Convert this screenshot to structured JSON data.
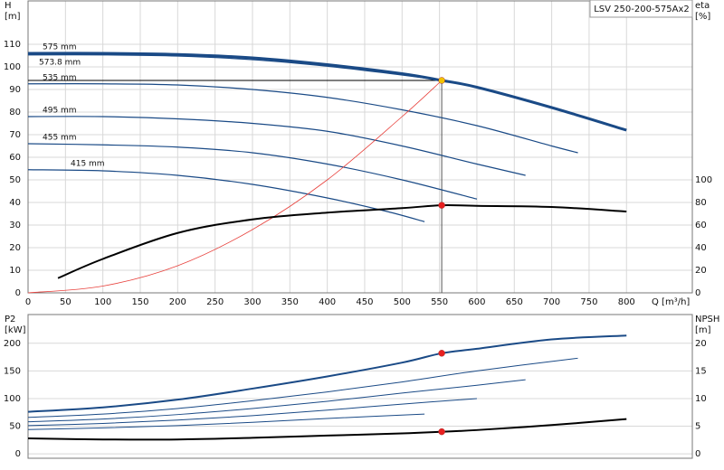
{
  "chart_data": [
    {
      "type": "line",
      "title": "LSV 250-200-575Ax2",
      "x_label": "Q [m³/h]",
      "y_label": [
        "H",
        "[m]"
      ],
      "y2_label": [
        "eta",
        "[%]"
      ],
      "xlim": [
        0,
        888
      ],
      "xticks": [
        0,
        50,
        100,
        150,
        200,
        250,
        300,
        350,
        400,
        450,
        500,
        550,
        600,
        650,
        700,
        750,
        800
      ],
      "ylim": [
        0,
        129.2
      ],
      "yticks": [
        0,
        10,
        20,
        30,
        40,
        50,
        60,
        70,
        80,
        90,
        100,
        110
      ],
      "y2lim": [
        0,
        258.4
      ],
      "y2ticks": [
        0,
        20,
        40,
        60,
        80,
        100
      ],
      "grid": true,
      "series": [
        {
          "name": "575 mm",
          "color": "#1a4a86",
          "width": 3,
          "x": [
            0,
            100,
            200,
            300,
            400,
            500,
            553,
            600,
            700,
            800
          ],
          "values": [
            106,
            106,
            105.5,
            104,
            101,
            97,
            94,
            91,
            82,
            72
          ]
        },
        {
          "name": "573.8 mm",
          "color": "#1a4a86",
          "width": 1.2,
          "x": [
            0,
            100,
            200,
            300,
            400,
            500,
            553
          ],
          "values": [
            105.3,
            105.3,
            104.8,
            103.2,
            100.3,
            96.4,
            94
          ]
        },
        {
          "name": "535 mm",
          "color": "#1a4a86",
          "width": 1.2,
          "x": [
            0,
            100,
            200,
            300,
            400,
            500,
            600,
            700,
            735
          ],
          "values": [
            92.5,
            92.5,
            92,
            90,
            86.5,
            81,
            74,
            65,
            62
          ]
        },
        {
          "name": "495 mm",
          "color": "#1a4a86",
          "width": 1.2,
          "x": [
            0,
            100,
            200,
            300,
            400,
            500,
            600,
            665
          ],
          "values": [
            78,
            78,
            77,
            75,
            71.5,
            65,
            57,
            52
          ]
        },
        {
          "name": "455 mm",
          "color": "#1a4a86",
          "width": 1.2,
          "x": [
            0,
            100,
            200,
            300,
            400,
            500,
            600
          ],
          "values": [
            66,
            65.5,
            64.5,
            62,
            57,
            50,
            41.5
          ]
        },
        {
          "name": "415 mm",
          "color": "#1a4a86",
          "width": 1.2,
          "x": [
            0,
            100,
            200,
            300,
            400,
            480,
            530
          ],
          "values": [
            54.5,
            54,
            52,
            48,
            42,
            36,
            31.5
          ]
        },
        {
          "color": "#e8413c",
          "width": 0.8,
          "x": [
            0,
            100,
            200,
            300,
            400,
            500,
            553
          ],
          "values": [
            0,
            3,
            12,
            28,
            50,
            78,
            94
          ]
        },
        {
          "color": "#000000",
          "width": 2,
          "axis": "y2",
          "x": [
            40,
            100,
            200,
            300,
            400,
            500,
            553,
            600,
            700,
            800
          ],
          "values": [
            13,
            30,
            53,
            65,
            71,
            75,
            77.5,
            77,
            76,
            72
          ]
        }
      ],
      "duty": {
        "x": 553,
        "y": 94
      },
      "markers": [
        {
          "x": 553,
          "y": 94,
          "color": "#f2c200"
        },
        {
          "x": 553,
          "y": 77.5,
          "axis": "y2",
          "color": "#e82020"
        }
      ]
    },
    {
      "type": "line",
      "y_label": [
        "P2",
        "[kW]"
      ],
      "y2_label": [
        "NPSH",
        "[m]"
      ],
      "xlim": [
        0,
        888
      ],
      "ylim": [
        -8,
        252
      ],
      "yticks": [
        0,
        50,
        100,
        150,
        200
      ],
      "y2lim": [
        -0.8,
        25.2
      ],
      "y2ticks": [
        0,
        5,
        10,
        15,
        20
      ],
      "grid": true,
      "series": [
        {
          "color": "#1a4a86",
          "width": 2,
          "x": [
            0,
            100,
            200,
            300,
            400,
            500,
            553,
            600,
            700,
            800
          ],
          "values": [
            76,
            84,
            98,
            118,
            140,
            165,
            182,
            190,
            207,
            214
          ]
        },
        {
          "color": "#1a4a86",
          "width": 1,
          "x": [
            0,
            100,
            200,
            300,
            400,
            500,
            600,
            735
          ],
          "values": [
            66,
            72,
            82,
            96,
            112,
            130,
            150,
            173
          ]
        },
        {
          "color": "#1a4a86",
          "width": 1,
          "x": [
            0,
            100,
            200,
            300,
            400,
            500,
            600,
            665
          ],
          "values": [
            58,
            63,
            71,
            82,
            95,
            110,
            124,
            134
          ]
        },
        {
          "color": "#1a4a86",
          "width": 1,
          "x": [
            0,
            100,
            200,
            300,
            400,
            500,
            600
          ],
          "values": [
            51,
            55,
            61,
            69,
            79,
            90,
            100
          ]
        },
        {
          "color": "#1a4a86",
          "width": 1,
          "x": [
            0,
            100,
            200,
            300,
            400,
            530
          ],
          "values": [
            44,
            47,
            51,
            57,
            64,
            72
          ]
        },
        {
          "color": "#000000",
          "width": 2,
          "axis": "y2",
          "x": [
            0,
            100,
            200,
            300,
            400,
            500,
            553,
            600,
            700,
            800
          ],
          "values": [
            2.8,
            2.6,
            2.6,
            2.9,
            3.3,
            3.7,
            4,
            4.3,
            5.2,
            6.3
          ]
        }
      ],
      "markers": [
        {
          "x": 553,
          "y": 182,
          "color": "#e82020"
        },
        {
          "x": 553,
          "y": 4,
          "axis": "y2",
          "color": "#e82020"
        }
      ]
    }
  ]
}
